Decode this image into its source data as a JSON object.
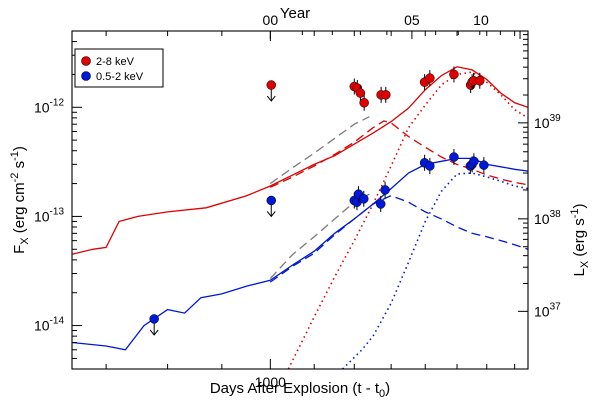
{
  "chart_data": {
    "type": "scatter",
    "title": "",
    "x_bottom": {
      "label_main": "Days After Explosion (t - t",
      "label_sub": "0",
      "label_end": ")",
      "scale": "log",
      "range": [
        650,
        1750
      ],
      "ticks": [
        {
          "value": 1000,
          "label": "1000"
        }
      ]
    },
    "x_top": {
      "label": "Year",
      "ticks": [
        {
          "value": 1000,
          "label": "00"
        },
        {
          "value": 1360,
          "label": "05"
        },
        {
          "value": 1580,
          "label": "10"
        }
      ]
    },
    "y_left": {
      "label_pre": "F",
      "label_pre_sub": "X",
      "label_main": " (erg cm",
      "label_sup1": "-2",
      "label_mid": " s",
      "label_sup2": "-1",
      "label_end": ")",
      "scale": "log",
      "range": [
        4e-15,
        5e-12
      ],
      "ticks": [
        {
          "value": 1e-14,
          "base": "10",
          "exp": "-14"
        },
        {
          "value": 1e-13,
          "base": "10",
          "exp": "-13"
        },
        {
          "value": 1e-12,
          "base": "10",
          "exp": "-12"
        }
      ]
    },
    "y_right": {
      "label_pre": "L",
      "label_pre_sub": "X",
      "label_main": " (erg s",
      "label_sup": "-1",
      "label_end": ")",
      "ticks": [
        {
          "value": 1.35e-14,
          "base": "10",
          "exp": "37"
        },
        {
          "value": 9.5e-14,
          "base": "10",
          "exp": "38"
        },
        {
          "value": 7.2e-13,
          "base": "10",
          "exp": "39"
        }
      ]
    },
    "grid": false,
    "legend_position": "top-left",
    "series": [
      {
        "name": "2-8 keV",
        "color": "#e00000",
        "points": [
          {
            "x": 1002,
            "y": 1.6e-12,
            "upper_limit": true
          },
          {
            "x": 1200,
            "y": 1.55e-12
          },
          {
            "x": 1208,
            "y": 1.5e-12
          },
          {
            "x": 1216,
            "y": 1.35e-12
          },
          {
            "x": 1226,
            "y": 1.1e-12
          },
          {
            "x": 1272,
            "y": 1.3e-12
          },
          {
            "x": 1285,
            "y": 1.3e-12
          },
          {
            "x": 1398,
            "y": 1.7e-12
          },
          {
            "x": 1414,
            "y": 1.85e-12
          },
          {
            "x": 1490,
            "y": 2e-12
          },
          {
            "x": 1545,
            "y": 1.6e-12
          },
          {
            "x": 1550,
            "y": 1.7e-12
          },
          {
            "x": 1555,
            "y": 1.75e-12
          },
          {
            "x": 1576,
            "y": 1.75e-12
          }
        ]
      },
      {
        "name": "0.5-2 keV",
        "color": "#0018d8",
        "points": [
          {
            "x": 777,
            "y": 1.15e-14,
            "upper_limit": true
          },
          {
            "x": 1002,
            "y": 1.4e-13,
            "upper_limit": true
          },
          {
            "x": 1200,
            "y": 1.4e-13
          },
          {
            "x": 1207,
            "y": 1.35e-13
          },
          {
            "x": 1211,
            "y": 1.6e-13
          },
          {
            "x": 1225,
            "y": 1.45e-13
          },
          {
            "x": 1271,
            "y": 1.3e-13
          },
          {
            "x": 1283,
            "y": 1.75e-13
          },
          {
            "x": 1398,
            "y": 3.1e-13
          },
          {
            "x": 1414,
            "y": 2.9e-13
          },
          {
            "x": 1490,
            "y": 3.5e-13
          },
          {
            "x": 1544,
            "y": 2.9e-13
          },
          {
            "x": 1550,
            "y": 3e-13
          },
          {
            "x": 1556,
            "y": 3.2e-13
          },
          {
            "x": 1590,
            "y": 2.95e-13
          }
        ]
      }
    ],
    "model_curves": [
      {
        "id": "hard-total",
        "color": "#e00000",
        "style": "solid",
        "points": [
          [
            650,
            4.5e-14
          ],
          [
            680,
            5e-14
          ],
          [
            700,
            5.2e-14
          ],
          [
            720,
            9e-14
          ],
          [
            750,
            1e-13
          ],
          [
            800,
            1.1e-13
          ],
          [
            870,
            1.2e-13
          ],
          [
            950,
            1.55e-13
          ],
          [
            1000,
            1.9e-13
          ],
          [
            1050,
            2.4e-13
          ],
          [
            1100,
            3e-13
          ],
          [
            1150,
            3.6e-13
          ],
          [
            1200,
            4.6e-13
          ],
          [
            1250,
            5.8e-13
          ],
          [
            1300,
            7.4e-13
          ],
          [
            1350,
            9.8e-13
          ],
          [
            1400,
            1.45e-12
          ],
          [
            1450,
            1.95e-12
          ],
          [
            1500,
            2.35e-12
          ],
          [
            1550,
            2.2e-12
          ],
          [
            1600,
            1.8e-12
          ],
          [
            1650,
            1.35e-12
          ],
          [
            1700,
            1.1e-12
          ],
          [
            1750,
            1e-12
          ]
        ]
      },
      {
        "id": "hard-forward",
        "color": "#e00000",
        "style": "dashed",
        "points": [
          [
            1000,
            1.85e-13
          ],
          [
            1050,
            2.3e-13
          ],
          [
            1100,
            2.9e-13
          ],
          [
            1150,
            3.7e-13
          ],
          [
            1200,
            4.8e-13
          ],
          [
            1250,
            6.5e-13
          ],
          [
            1280,
            7.5e-13
          ],
          [
            1300,
            7.2e-13
          ],
          [
            1350,
            5.4e-13
          ],
          [
            1400,
            4.3e-13
          ],
          [
            1450,
            3.5e-13
          ],
          [
            1500,
            3e-13
          ],
          [
            1550,
            2.7e-13
          ],
          [
            1600,
            2.4e-13
          ],
          [
            1650,
            2.2e-13
          ],
          [
            1700,
            2.05e-13
          ],
          [
            1750,
            1.95e-13
          ]
        ]
      },
      {
        "id": "hard-reverse",
        "color": "#e00000",
        "style": "dotted",
        "points": [
          [
            1040,
            4e-15
          ],
          [
            1100,
            1.2e-14
          ],
          [
            1150,
            2.8e-14
          ],
          [
            1200,
            6e-14
          ],
          [
            1250,
            1.3e-13
          ],
          [
            1300,
            2.9e-13
          ],
          [
            1350,
            6.5e-13
          ],
          [
            1400,
            1.05e-12
          ],
          [
            1450,
            1.6e-12
          ],
          [
            1500,
            2e-12
          ],
          [
            1550,
            2.1e-12
          ],
          [
            1600,
            1.7e-12
          ],
          [
            1650,
            1.3e-12
          ],
          [
            1700,
            9.5e-13
          ],
          [
            1750,
            8e-13
          ]
        ]
      },
      {
        "id": "hard-gray",
        "color": "#7a7a7a",
        "style": "dashed",
        "points": [
          [
            1000,
            2e-13
          ],
          [
            1050,
            2.8e-13
          ],
          [
            1100,
            3.8e-13
          ],
          [
            1150,
            5.2e-13
          ],
          [
            1200,
            7e-13
          ],
          [
            1240,
            8.2e-13
          ]
        ]
      },
      {
        "id": "soft-total",
        "color": "#0018d8",
        "style": "solid",
        "points": [
          [
            650,
            7e-15
          ],
          [
            700,
            6.5e-15
          ],
          [
            730,
            6e-15
          ],
          [
            760,
            1e-14
          ],
          [
            800,
            1.4e-14
          ],
          [
            830,
            1.3e-14
          ],
          [
            860,
            1.8e-14
          ],
          [
            900,
            1.95e-14
          ],
          [
            950,
            2.3e-14
          ],
          [
            1000,
            2.6e-14
          ],
          [
            1050,
            3.6e-14
          ],
          [
            1100,
            4.8e-14
          ],
          [
            1150,
            7e-14
          ],
          [
            1200,
            9.5e-14
          ],
          [
            1250,
            1.3e-13
          ],
          [
            1300,
            1.8e-13
          ],
          [
            1350,
            2.5e-13
          ],
          [
            1400,
            3e-13
          ],
          [
            1450,
            3.2e-13
          ],
          [
            1500,
            3.4e-13
          ],
          [
            1550,
            3.4e-13
          ],
          [
            1600,
            3e-13
          ],
          [
            1650,
            2.85e-13
          ],
          [
            1700,
            2.7e-13
          ],
          [
            1750,
            2.6e-13
          ]
        ]
      },
      {
        "id": "soft-forward",
        "color": "#0018d8",
        "style": "dashed",
        "points": [
          [
            1000,
            2.5e-14
          ],
          [
            1050,
            3.5e-14
          ],
          [
            1100,
            4.6e-14
          ],
          [
            1150,
            6.8e-14
          ],
          [
            1200,
            9.5e-14
          ],
          [
            1250,
            1.3e-13
          ],
          [
            1290,
            1.5e-13
          ],
          [
            1300,
            1.55e-13
          ],
          [
            1350,
            1.35e-13
          ],
          [
            1400,
            1.1e-13
          ],
          [
            1450,
            9.5e-14
          ],
          [
            1500,
            8e-14
          ],
          [
            1550,
            7e-14
          ],
          [
            1600,
            6.5e-14
          ],
          [
            1650,
            6e-14
          ],
          [
            1700,
            5.5e-14
          ],
          [
            1750,
            5e-14
          ]
        ]
      },
      {
        "id": "soft-reverse",
        "color": "#0018d8",
        "style": "dotted",
        "points": [
          [
            1170,
            4e-15
          ],
          [
            1220,
            6e-15
          ],
          [
            1250,
            8e-15
          ],
          [
            1300,
            1.6e-14
          ],
          [
            1350,
            3.8e-14
          ],
          [
            1400,
            9e-14
          ],
          [
            1450,
            1.7e-13
          ],
          [
            1500,
            2.45e-13
          ],
          [
            1550,
            2.5e-13
          ],
          [
            1600,
            2.3e-13
          ],
          [
            1650,
            2.1e-13
          ],
          [
            1700,
            1.9e-13
          ],
          [
            1750,
            1.8e-13
          ]
        ]
      },
      {
        "id": "soft-gray",
        "color": "#7a7a7a",
        "style": "dashed",
        "points": [
          [
            1000,
            2.7e-14
          ],
          [
            1050,
            4.5e-14
          ],
          [
            1100,
            6.5e-14
          ],
          [
            1150,
            9.5e-14
          ],
          [
            1200,
            1.35e-13
          ],
          [
            1240,
            1.6e-13
          ]
        ]
      }
    ]
  }
}
